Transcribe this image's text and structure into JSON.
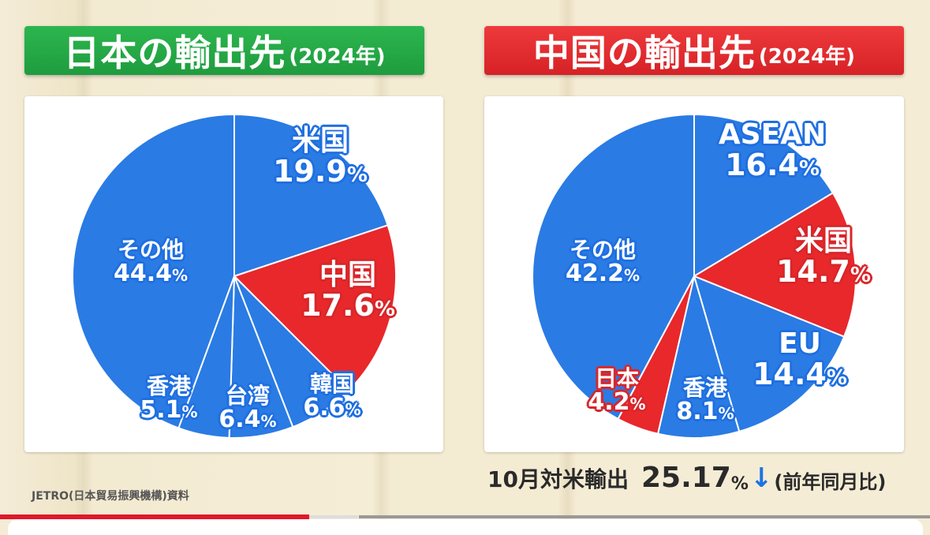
{
  "left": {
    "title": "日本の輸出先",
    "year": "(2024年)",
    "title_color": "#22a845"
  },
  "right": {
    "title": "中国の輸出先",
    "year": "(2024年)",
    "title_color": "#e42b2e"
  },
  "source": "JETRO(日本貿易振興機構)資料",
  "note": {
    "label": "10月対米輸出",
    "value": "25.17",
    "unit": "%",
    "arrow": "↓",
    "suffix": "(前年同月比)"
  },
  "labels": {
    "l_us_n": "米国",
    "l_us_v": "19.9",
    "l_cn_n": "中国",
    "l_cn_v": "17.6",
    "l_kr_n": "韓国",
    "l_kr_v": "6.6",
    "l_tw_n": "台湾",
    "l_tw_v": "6.4",
    "l_hk_n": "香港",
    "l_hk_v": "5.1",
    "l_ot_n": "その他",
    "l_ot_v": "44.4",
    "r_as_n": "ASEAN",
    "r_as_v": "16.4",
    "r_us_n": "米国",
    "r_us_v": "14.7",
    "r_eu_n": "EU",
    "r_eu_v": "14.4",
    "r_hk_n": "香港",
    "r_hk_v": "8.1",
    "r_jp_n": "日本",
    "r_jp_v": "4.2",
    "r_ot_n": "その他",
    "r_ot_v": "42.2",
    "pct": "%"
  },
  "chart_data": [
    {
      "type": "pie",
      "title": "日本の輸出先(2024年)",
      "categories": [
        "米国",
        "中国",
        "韓国",
        "台湾",
        "香港",
        "その他"
      ],
      "values": [
        19.9,
        17.6,
        6.6,
        6.4,
        5.1,
        44.4
      ],
      "colors": [
        "#2a7be4",
        "#e8282b",
        "#2a7be4",
        "#2a7be4",
        "#2a7be4",
        "#2a7be4"
      ],
      "unit": "%"
    },
    {
      "type": "pie",
      "title": "中国の輸出先(2024年)",
      "categories": [
        "ASEAN",
        "米国",
        "EU",
        "香港",
        "日本",
        "その他"
      ],
      "values": [
        16.4,
        14.7,
        14.4,
        8.1,
        4.2,
        42.2
      ],
      "colors": [
        "#2a7be4",
        "#e8282b",
        "#2a7be4",
        "#2a7be4",
        "#e8282b",
        "#2a7be4"
      ],
      "unit": "%"
    }
  ]
}
